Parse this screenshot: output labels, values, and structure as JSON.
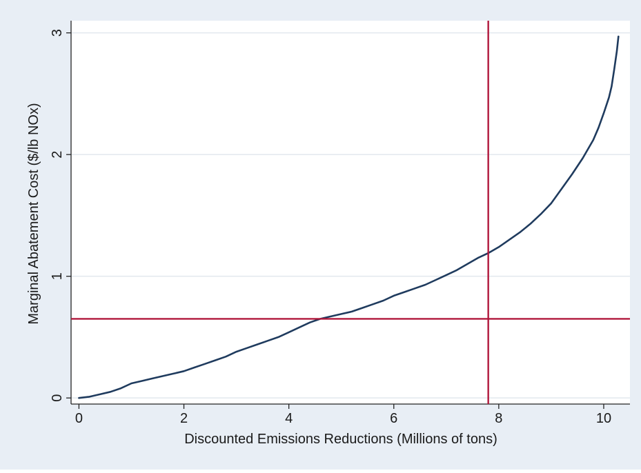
{
  "chart_data": {
    "type": "line",
    "title": "",
    "xlabel": "Discounted Emissions Reductions (Millions of tons)",
    "ylabel": "Marginal Abatement Cost ($/lb NOx)",
    "xlim": [
      -0.15,
      10.5
    ],
    "ylim": [
      -0.05,
      3.1
    ],
    "xticks": [
      0,
      2,
      4,
      6,
      8,
      10
    ],
    "xtick_labels": [
      "0",
      "2",
      "4",
      "6",
      "8",
      "10"
    ],
    "yticks": [
      0,
      1,
      2,
      3
    ],
    "ytick_labels": [
      "0",
      "1",
      "2",
      "3"
    ],
    "grid": true,
    "legend": "none",
    "colors": {
      "outer_background": "#e8eef5",
      "plot_background": "#ffffff",
      "gridline": "#e2e8ee",
      "curve": "#1f3b5e",
      "reference_lines": "#b0173b"
    },
    "series": [
      {
        "x": [
          0,
          0.2,
          0.4,
          0.6,
          0.8,
          1.0,
          1.2,
          1.4,
          1.6,
          1.8,
          2.0,
          2.2,
          2.4,
          2.6,
          2.8,
          3.0,
          3.2,
          3.4,
          3.6,
          3.8,
          4.0,
          4.2,
          4.4,
          4.6,
          4.8,
          5.0,
          5.2,
          5.4,
          5.6,
          5.8,
          6.0,
          6.2,
          6.4,
          6.6,
          6.8,
          7.0,
          7.2,
          7.4,
          7.6,
          7.8,
          8.0,
          8.2,
          8.4,
          8.6,
          8.8,
          9.0,
          9.2,
          9.4,
          9.6,
          9.8,
          9.9,
          10.0,
          10.1,
          10.15,
          10.2,
          10.25,
          10.28
        ],
        "y": [
          0.0,
          0.01,
          0.03,
          0.05,
          0.08,
          0.12,
          0.14,
          0.16,
          0.18,
          0.2,
          0.22,
          0.25,
          0.28,
          0.31,
          0.34,
          0.38,
          0.41,
          0.44,
          0.47,
          0.5,
          0.54,
          0.58,
          0.62,
          0.65,
          0.67,
          0.69,
          0.71,
          0.74,
          0.77,
          0.8,
          0.84,
          0.87,
          0.9,
          0.93,
          0.97,
          1.01,
          1.05,
          1.1,
          1.15,
          1.19,
          1.24,
          1.3,
          1.36,
          1.43,
          1.51,
          1.6,
          1.72,
          1.84,
          1.97,
          2.12,
          2.22,
          2.34,
          2.47,
          2.56,
          2.7,
          2.85,
          2.97
        ]
      }
    ],
    "reference_lines": [
      {
        "orientation": "vertical",
        "x": 7.8
      },
      {
        "orientation": "horizontal",
        "y": 0.65
      }
    ]
  }
}
